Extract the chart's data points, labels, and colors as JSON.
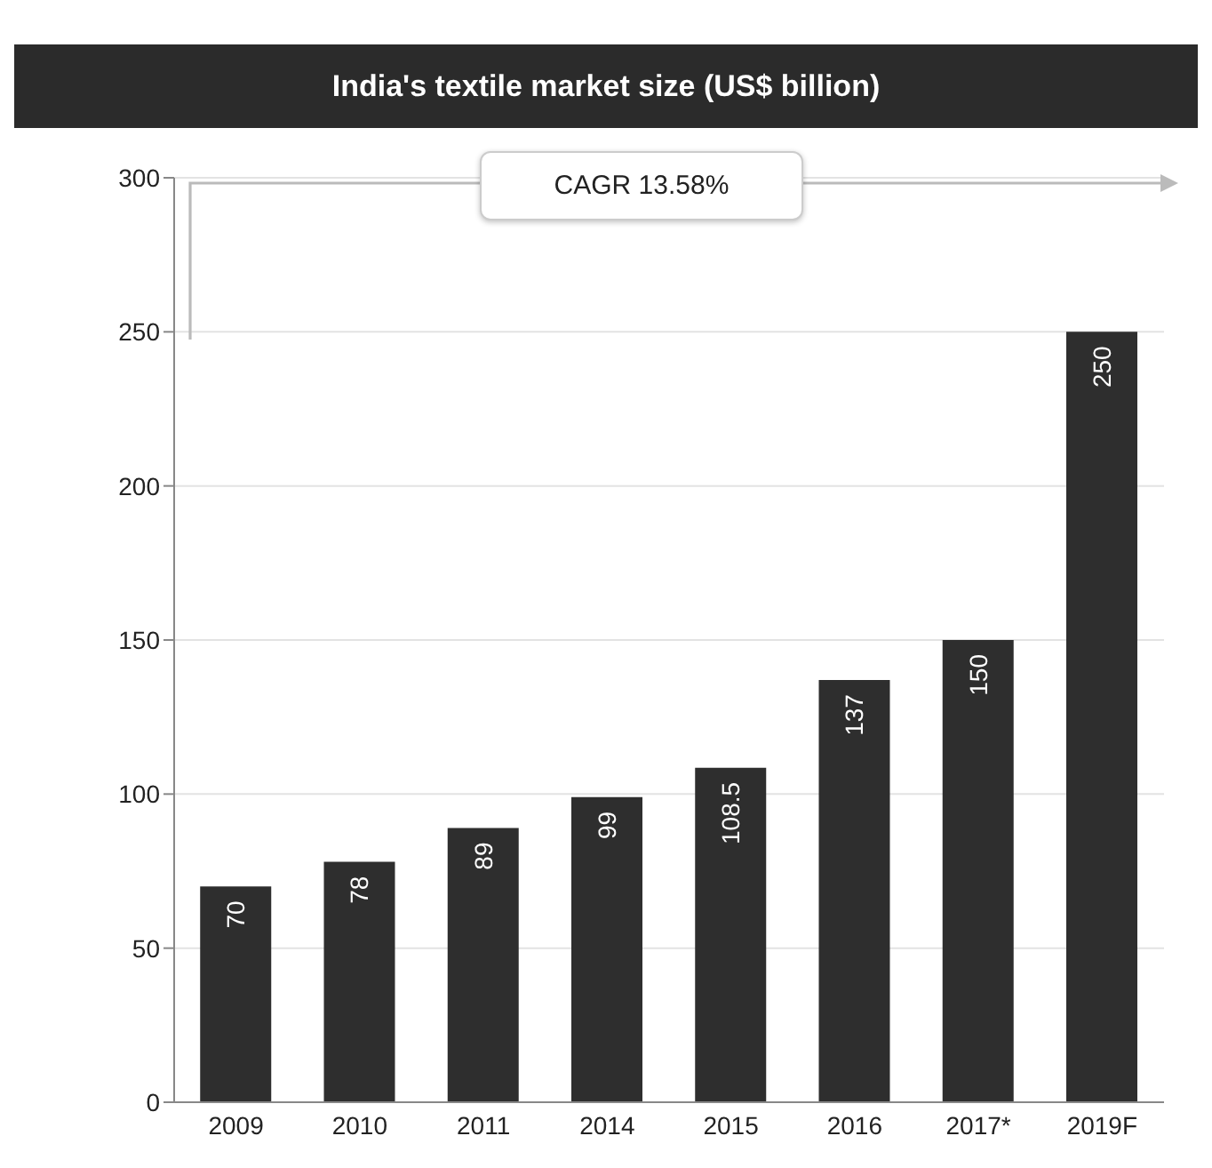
{
  "chart_data": {
    "type": "bar",
    "title": "India's textile market size (US$ billion)",
    "categories": [
      "2009",
      "2010",
      "2011",
      "2014",
      "2015",
      "2016",
      "2017*",
      "2019F"
    ],
    "values": [
      70,
      78,
      89,
      99,
      108.5,
      137,
      150,
      250
    ],
    "color": "#2e2e2e",
    "ylim": [
      0,
      300
    ],
    "yticks": [
      0,
      50,
      100,
      150,
      200,
      250,
      300
    ],
    "grid": "y",
    "data_labels": true,
    "annotations": [
      "CAGR 13.58%"
    ]
  }
}
